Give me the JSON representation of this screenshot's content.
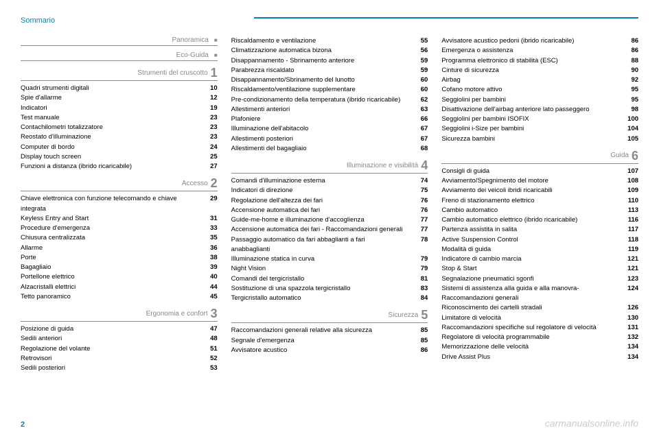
{
  "header": {
    "title": "Sommario"
  },
  "pageNumber": "2",
  "watermark": "carmanualsonline.info",
  "col1": {
    "sections": [
      {
        "title": "Panoramica",
        "marker": "square",
        "items": []
      },
      {
        "title": "Eco-Guida",
        "marker": "square",
        "items": []
      },
      {
        "title": "Strumenti del cruscotto",
        "marker": "1",
        "items": [
          {
            "label": "Quadri strumenti digitali",
            "page": "10"
          },
          {
            "label": "Spie d'allarme",
            "page": "12"
          },
          {
            "label": "Indicatori",
            "page": "19"
          },
          {
            "label": "Test manuale",
            "page": "23"
          },
          {
            "label": "Contachilometri totalizzatore",
            "page": "23"
          },
          {
            "label": "Reostato d'illuminazione",
            "page": "23"
          },
          {
            "label": "Computer di bordo",
            "page": "24"
          },
          {
            "label": "Display touch screen",
            "page": "25"
          },
          {
            "label": "Funzioni a distanza (ibrido ricaricabile)",
            "page": "27"
          }
        ]
      },
      {
        "title": "Accesso",
        "marker": "2",
        "items": [
          {
            "label": "Chiave elettronica con funzione telecomando e chiave integrata",
            "page": "29"
          },
          {
            "label": "Keyless Entry and Start",
            "page": "31"
          },
          {
            "label": "Procedure d'emergenza",
            "page": "33"
          },
          {
            "label": "Chiusura centralizzata",
            "page": "35"
          },
          {
            "label": "Allarme",
            "page": "36"
          },
          {
            "label": "Porte",
            "page": "38"
          },
          {
            "label": "Bagagliaio",
            "page": "39"
          },
          {
            "label": "Portellone elettrico",
            "page": "40"
          },
          {
            "label": "Alzacristalli elettrici",
            "page": "44"
          },
          {
            "label": "Tetto panoramico",
            "page": "45"
          }
        ]
      },
      {
        "title": "Ergonomia e confort",
        "marker": "3",
        "items": [
          {
            "label": "Posizione di guida",
            "page": "47"
          },
          {
            "label": "Sedili anteriori",
            "page": "48"
          },
          {
            "label": "Regolazione del volante",
            "page": "51"
          },
          {
            "label": "Retrovisori",
            "page": "52"
          },
          {
            "label": "Sedili posteriori",
            "page": "53"
          }
        ]
      }
    ]
  },
  "col2": {
    "topItems": [
      {
        "label": "Riscaldamento e ventilazione",
        "page": "55"
      },
      {
        "label": "Climatizzazione automatica bizona",
        "page": "56"
      },
      {
        "label": "Disappannamento - Sbrinamento anteriore",
        "page": "59"
      },
      {
        "label": "Parabrezza riscaldato",
        "page": "59"
      },
      {
        "label": "Disappannamento/Sbrinamento del lunotto",
        "page": "60"
      },
      {
        "label": "Riscaldamento/ventilazione supplementare",
        "page": "60"
      },
      {
        "label": "Pre-condizionamento della temperatura (ibrido ricaricabile)",
        "page": "62"
      },
      {
        "label": "Allestimenti anteriori",
        "page": "63"
      },
      {
        "label": "Plafoniere",
        "page": "66"
      },
      {
        "label": "Illuminazione dell'abitacolo",
        "page": "67"
      },
      {
        "label": "Allestimenti posteriori",
        "page": "67"
      },
      {
        "label": "Allestimenti del bagagliaio",
        "page": "68"
      }
    ],
    "sections": [
      {
        "title": "Illuminazione e visibilità",
        "marker": "4",
        "items": [
          {
            "label": "Comandi d'illuminazione esterna",
            "page": "74"
          },
          {
            "label": "Indicatori di direzione",
            "page": "75"
          },
          {
            "label": "Regolazione dell'altezza dei fari",
            "page": "76"
          },
          {
            "label": "Accensione automatica dei fari",
            "page": "76"
          },
          {
            "label": "Guide-me-home e illuminazione d'accoglienza",
            "page": "77"
          },
          {
            "label": "Accensione automatica dei fari - Raccomandazioni generali",
            "page": "77"
          },
          {
            "label": "Passaggio automatico da fari abbaglianti a fari anabbaglianti",
            "page": "78"
          },
          {
            "label": "Illuminazione statica in curva",
            "page": "79"
          },
          {
            "label": "Night Vision",
            "page": "79"
          },
          {
            "label": "Comandi del tergicristallo",
            "page": "81"
          },
          {
            "label": "Sostituzione di una spazzola tergicristallo",
            "page": "83"
          },
          {
            "label": "Tergicristallo automatico",
            "page": "84"
          }
        ]
      },
      {
        "title": "Sicurezza",
        "marker": "5",
        "items": [
          {
            "label": "Raccomandazioni generali relative alla sicurezza",
            "page": "85"
          },
          {
            "label": "Segnale d'emergenza",
            "page": "85"
          },
          {
            "label": "Avvisatore acustico",
            "page": "86"
          }
        ]
      }
    ]
  },
  "col3": {
    "topItems": [
      {
        "label": "Avvisatore acustico pedoni (ibrido ricaricabile)",
        "page": "86"
      },
      {
        "label": "Emergenza o assistenza",
        "page": "86"
      },
      {
        "label": "Programma elettronico di stabilità (ESC)",
        "page": "88"
      },
      {
        "label": "Cinture di sicurezza",
        "page": "90"
      },
      {
        "label": "Airbag",
        "page": "92"
      },
      {
        "label": "Cofano motore attivo",
        "page": "95"
      },
      {
        "label": "Seggiolini per bambini",
        "page": "95"
      },
      {
        "label": "Disattivazione dell'airbag anteriore lato passeggero",
        "page": "98"
      },
      {
        "label": "Seggiolini per bambini ISOFIX",
        "page": "100"
      },
      {
        "label": "Seggiolini i-Size per bambini",
        "page": "104"
      },
      {
        "label": "Sicurezza bambini",
        "page": "105"
      }
    ],
    "sections": [
      {
        "title": "Guida",
        "marker": "6",
        "items": [
          {
            "label": "Consigli di guida",
            "page": "107"
          },
          {
            "label": "Avviamento/Spegnimento del motore",
            "page": "108"
          },
          {
            "label": "Avviamento dei veicoli ibridi ricaricabili",
            "page": "109"
          },
          {
            "label": "Freno di stazionamento elettrico",
            "page": "110"
          },
          {
            "label": "Cambio automatico",
            "page": "113"
          },
          {
            "label": "Cambio automatico elettrico (ibrido ricaricabile)",
            "page": "116"
          },
          {
            "label": "Partenza assistita in salita",
            "page": "117"
          },
          {
            "label": "Active Suspension Control",
            "page": "118"
          },
          {
            "label": "Modalità di guida",
            "page": "119"
          },
          {
            "label": "Indicatore di cambio marcia",
            "page": "121"
          },
          {
            "label": "Stop & Start",
            "page": "121"
          },
          {
            "label": "Segnalazione pneumatici sgonfi",
            "page": "123"
          },
          {
            "label": "Sistemi di assistenza alla guida e alla manovra- Raccomandazioni generali",
            "page": "124"
          },
          {
            "label": "Riconoscimento dei cartelli stradali",
            "page": "126"
          },
          {
            "label": "Limitatore di velocità",
            "page": "130"
          },
          {
            "label": "Raccomandazioni specifiche sul regolatore di velocità",
            "page": "131"
          },
          {
            "label": "Regolatore di velocità programmabile",
            "page": "132"
          },
          {
            "label": "Memorizzazione delle velocità",
            "page": "134"
          },
          {
            "label": "Drive Assist Plus",
            "page": "134"
          }
        ]
      }
    ]
  }
}
